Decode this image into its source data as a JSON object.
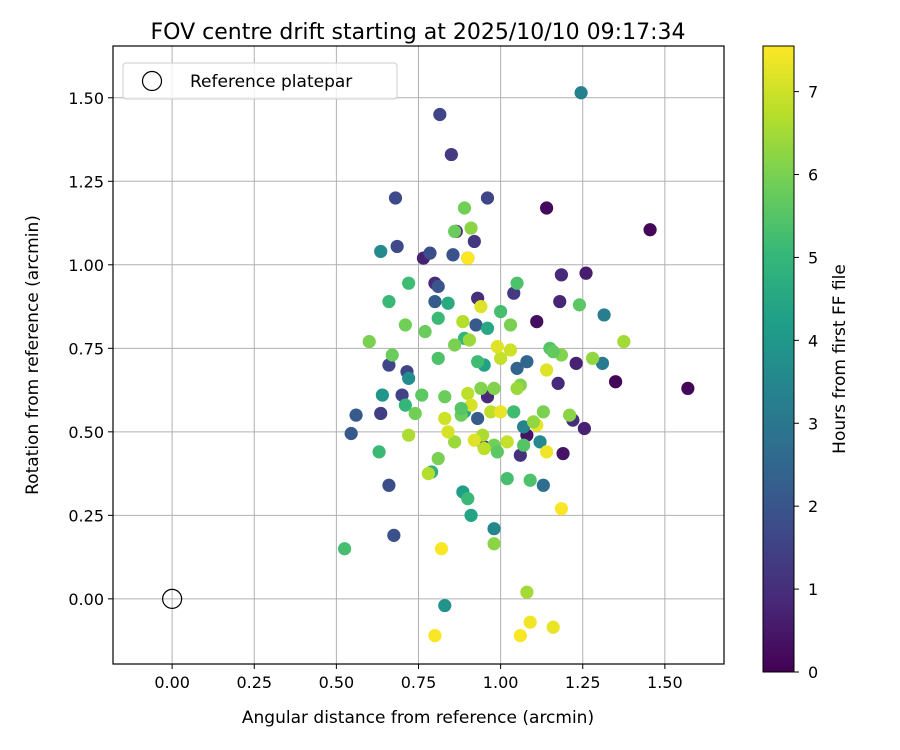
{
  "chart_data": {
    "type": "scatter",
    "title": "FOV centre drift starting at 2025/10/10 09:17:34",
    "xlabel": "Angular distance from reference (arcmin)",
    "ylabel": "Rotation from reference (arcmin)",
    "xlim": [
      -0.18,
      1.68
    ],
    "ylim": [
      -0.195,
      1.655
    ],
    "xticks": [
      0.0,
      0.25,
      0.5,
      0.75,
      1.0,
      1.25,
      1.5
    ],
    "xtick_labels": [
      "0.00",
      "0.25",
      "0.50",
      "0.75",
      "1.00",
      "1.25",
      "1.50"
    ],
    "yticks": [
      0.0,
      0.25,
      0.5,
      0.75,
      1.0,
      1.25,
      1.5
    ],
    "ytick_labels": [
      "0.00",
      "0.25",
      "0.50",
      "0.75",
      "1.00",
      "1.25",
      "1.50"
    ],
    "grid": true,
    "legend": {
      "position": "top-left",
      "entries": [
        "Reference platepar"
      ]
    },
    "reference_point": {
      "x": 0.0,
      "y": 0.0
    },
    "colorbar": {
      "label": "Hours from first FF file",
      "range": [
        0,
        7.55
      ],
      "ticks": [
        0,
        1,
        2,
        3,
        4,
        5,
        6,
        7
      ],
      "tick_labels": [
        "0",
        "1",
        "2",
        "3",
        "4",
        "5",
        "6",
        "7"
      ],
      "colormap": [
        "#440154",
        "#482878",
        "#3e4989",
        "#31688e",
        "#26828e",
        "#1f9e89",
        "#35b779",
        "#6ece58",
        "#b5de2b",
        "#fde725"
      ]
    },
    "points": [
      [
        1.57,
        0.63,
        0.1
      ],
      [
        1.455,
        1.105,
        0.1
      ],
      [
        1.35,
        0.65,
        0.1
      ],
      [
        1.14,
        1.17,
        0.2
      ],
      [
        1.11,
        0.83,
        0.3
      ],
      [
        1.08,
        0.49,
        0.4
      ],
      [
        1.19,
        0.435,
        0.4
      ],
      [
        1.26,
        0.975,
        0.6
      ],
      [
        1.23,
        0.705,
        0.7
      ],
      [
        1.255,
        0.51,
        0.7
      ],
      [
        1.18,
        0.89,
        0.8
      ],
      [
        1.175,
        0.645,
        0.9
      ],
      [
        1.185,
        0.97,
        0.9
      ],
      [
        1.22,
        0.535,
        1.0
      ],
      [
        0.765,
        1.02,
        0.7
      ],
      [
        0.8,
        0.945,
        0.9
      ],
      [
        0.865,
        1.1,
        0.8
      ],
      [
        0.85,
        1.33,
        1.3
      ],
      [
        0.92,
        1.07,
        1.2
      ],
      [
        0.93,
        0.9,
        1.0
      ],
      [
        0.96,
        0.605,
        0.9
      ],
      [
        0.95,
        0.455,
        1.0
      ],
      [
        1.06,
        0.43,
        1.1
      ],
      [
        1.04,
        0.915,
        1.3
      ],
      [
        0.815,
        1.45,
        1.6
      ],
      [
        0.96,
        1.2,
        1.6
      ],
      [
        0.68,
        1.2,
        1.7
      ],
      [
        0.685,
        1.055,
        1.7
      ],
      [
        0.785,
        1.035,
        1.8
      ],
      [
        0.855,
        1.03,
        1.9
      ],
      [
        0.9,
        1.02,
        1.9
      ],
      [
        0.715,
        0.68,
        1.6
      ],
      [
        0.66,
        0.7,
        1.6
      ],
      [
        0.7,
        0.61,
        1.5
      ],
      [
        0.635,
        0.555,
        1.4
      ],
      [
        0.66,
        0.34,
        1.8
      ],
      [
        0.675,
        0.19,
        1.9
      ],
      [
        0.56,
        0.55,
        2.1
      ],
      [
        0.545,
        0.495,
        2.1
      ],
      [
        0.8,
        0.89,
        2.2
      ],
      [
        0.81,
        0.935,
        2.0
      ],
      [
        0.925,
        0.82,
        2.1
      ],
      [
        0.93,
        0.54,
        2.2
      ],
      [
        1.05,
        0.69,
        2.4
      ],
      [
        1.08,
        0.71,
        2.5
      ],
      [
        1.13,
        0.34,
        2.7
      ],
      [
        1.245,
        1.515,
        3.3
      ],
      [
        1.315,
        0.85,
        3.2
      ],
      [
        1.31,
        0.705,
        3.1
      ],
      [
        0.98,
        0.21,
        3.5
      ],
      [
        1.07,
        0.515,
        3.4
      ],
      [
        1.12,
        0.47,
        3.6
      ],
      [
        0.72,
        0.66,
        3.7
      ],
      [
        0.635,
        1.04,
        3.6
      ],
      [
        0.64,
        0.61,
        3.9
      ],
      [
        0.83,
        -0.02,
        3.9
      ],
      [
        0.885,
        0.32,
        4.2
      ],
      [
        0.91,
        0.25,
        4.4
      ],
      [
        0.89,
        0.56,
        4.4
      ],
      [
        0.95,
        0.7,
        4.3
      ],
      [
        0.96,
        0.81,
        4.5
      ],
      [
        0.84,
        0.885,
        4.6
      ],
      [
        0.79,
        0.38,
        4.8
      ],
      [
        0.66,
        0.89,
        5.1
      ],
      [
        0.71,
        0.58,
        5.0
      ],
      [
        0.63,
        0.44,
        5.1
      ],
      [
        0.525,
        0.15,
        5.3
      ],
      [
        0.72,
        0.945,
        5.2
      ],
      [
        0.81,
        0.84,
        5.1
      ],
      [
        0.89,
        0.78,
        5.0
      ],
      [
        0.9,
        0.3,
        5.1
      ],
      [
        1.02,
        0.36,
        5.3
      ],
      [
        1.05,
        0.945,
        5.4
      ],
      [
        1.09,
        0.355,
        5.4
      ],
      [
        1.15,
        0.75,
        5.5
      ],
      [
        1.24,
        0.88,
        5.6
      ],
      [
        0.86,
        1.1,
        5.8
      ],
      [
        0.89,
        1.17,
        5.9
      ],
      [
        0.88,
        0.55,
        5.8
      ],
      [
        0.74,
        0.555,
        5.9
      ],
      [
        0.67,
        0.73,
        5.8
      ],
      [
        0.6,
        0.77,
        6.0
      ],
      [
        0.71,
        0.82,
        5.9
      ],
      [
        0.77,
        0.8,
        5.8
      ],
      [
        0.83,
        0.605,
        5.8
      ],
      [
        0.81,
        0.42,
        6.0
      ],
      [
        0.94,
        0.63,
        6.1
      ],
      [
        0.98,
        0.46,
        5.9
      ],
      [
        1.03,
        0.82,
        6.0
      ],
      [
        1.06,
        0.64,
        6.1
      ],
      [
        1.13,
        0.56,
        6.0
      ],
      [
        1.185,
        0.73,
        6.1
      ],
      [
        1.21,
        0.55,
        6.2
      ],
      [
        1.28,
        0.72,
        6.3
      ],
      [
        1.375,
        0.77,
        6.5
      ],
      [
        0.905,
        0.775,
        6.4
      ],
      [
        0.86,
        0.47,
        6.4
      ],
      [
        0.98,
        0.165,
        6.2
      ],
      [
        1.08,
        0.02,
        6.5
      ],
      [
        0.91,
        1.11,
        6.2
      ],
      [
        1.05,
        0.63,
        6.4
      ],
      [
        0.72,
        0.49,
        6.6
      ],
      [
        0.78,
        0.375,
        6.7
      ],
      [
        0.885,
        0.83,
        6.7
      ],
      [
        0.945,
        0.49,
        6.6
      ],
      [
        0.9,
        0.615,
        6.8
      ],
      [
        0.97,
        0.56,
        6.8
      ],
      [
        1.02,
        0.47,
        6.9
      ],
      [
        1.0,
        0.72,
        6.9
      ],
      [
        1.03,
        0.745,
        7.0
      ],
      [
        0.83,
        0.54,
        7.0
      ],
      [
        0.84,
        0.5,
        7.1
      ],
      [
        0.91,
        0.58,
        7.1
      ],
      [
        0.92,
        0.475,
        7.2
      ],
      [
        0.94,
        0.875,
        7.2
      ],
      [
        0.99,
        0.755,
        7.2
      ],
      [
        1.11,
        0.52,
        7.3
      ],
      [
        1.14,
        0.685,
        7.2
      ],
      [
        1.14,
        0.44,
        7.4
      ],
      [
        1.185,
        0.27,
        7.5
      ],
      [
        0.82,
        0.15,
        7.5
      ],
      [
        0.8,
        -0.11,
        7.5
      ],
      [
        1.06,
        -0.11,
        7.5
      ],
      [
        1.09,
        -0.07,
        7.4
      ],
      [
        1.16,
        -0.085,
        7.3
      ],
      [
        1.0,
        0.56,
        7.3
      ],
      [
        0.9,
        1.02,
        7.6
      ],
      [
        0.95,
        0.45,
        6.8
      ],
      [
        0.98,
        0.63,
        6.1
      ],
      [
        1.1,
        0.53,
        6.3
      ],
      [
        1.16,
        0.74,
        5.7
      ],
      [
        1.07,
        0.46,
        5.5
      ],
      [
        0.99,
        0.44,
        5.6
      ],
      [
        0.76,
        0.61,
        5.6
      ],
      [
        0.81,
        0.72,
        5.4
      ],
      [
        0.93,
        0.71,
        5.2
      ],
      [
        1.04,
        0.56,
        5.2
      ],
      [
        1.0,
        0.86,
        5.3
      ],
      [
        0.88,
        0.57,
        5.5
      ],
      [
        0.86,
        0.76,
        6.0
      ]
    ]
  }
}
